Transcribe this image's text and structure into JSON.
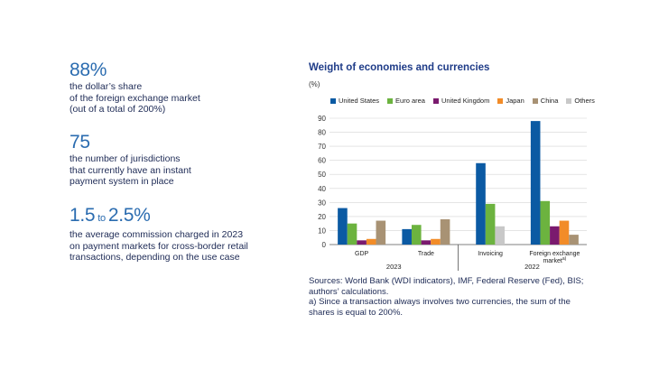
{
  "stats": [
    {
      "value": "88%",
      "lines": [
        "the dollar’s share",
        "of the foreign exchange market",
        "(out of a total of 200%)"
      ]
    },
    {
      "value": "75",
      "lines": [
        "the number of jurisdictions",
        "that currently have an instant",
        "payment system in place"
      ]
    },
    {
      "value_from": "1.5",
      "value_to_word": "to",
      "value_to": "2.5%",
      "lines": [
        "the average commission charged in 2023",
        "on payment markets for cross-border retail",
        "transactions, depending on the use case"
      ]
    }
  ],
  "chart_data": {
    "type": "bar",
    "title": "Weight of economies and currencies",
    "ylabel": "(%)",
    "ylim": [
      0,
      90
    ],
    "yticks": [
      0,
      10,
      20,
      30,
      40,
      50,
      60,
      70,
      80,
      90
    ],
    "categories": [
      "GDP",
      "Trade",
      "Invoicing",
      "Foreign exchange market"
    ],
    "category_label_suffix": [
      "",
      "",
      "",
      "a)"
    ],
    "groups": [
      {
        "label": "2023",
        "categories": [
          0,
          1
        ]
      },
      {
        "label": "2022",
        "categories": [
          2,
          3
        ]
      }
    ],
    "series": [
      {
        "name": "United States",
        "color": "#0b5aa3",
        "values": [
          26,
          11,
          58,
          88
        ]
      },
      {
        "name": "Euro area",
        "color": "#6cb33f",
        "values": [
          15,
          14,
          29,
          31
        ]
      },
      {
        "name": "United Kingdom",
        "color": "#7a1a6e",
        "values": [
          3,
          3,
          null,
          13
        ]
      },
      {
        "name": "Japan",
        "color": "#f28c28",
        "values": [
          4,
          4,
          null,
          17
        ]
      },
      {
        "name": "China",
        "color": "#a89274",
        "values": [
          17,
          18,
          null,
          7
        ]
      },
      {
        "name": "Others",
        "color": "#c8c8c8",
        "values": [
          null,
          null,
          13,
          null
        ]
      }
    ],
    "grid": true,
    "legend": "top"
  },
  "sources": {
    "text": "Sources: World Bank (WDI indicators), IMF, Federal Reserve (Fed), BIS; authors’ calculations.",
    "note": "a)  Since a transaction always involves two currencies, the sum of the shares is equal to 200%."
  }
}
